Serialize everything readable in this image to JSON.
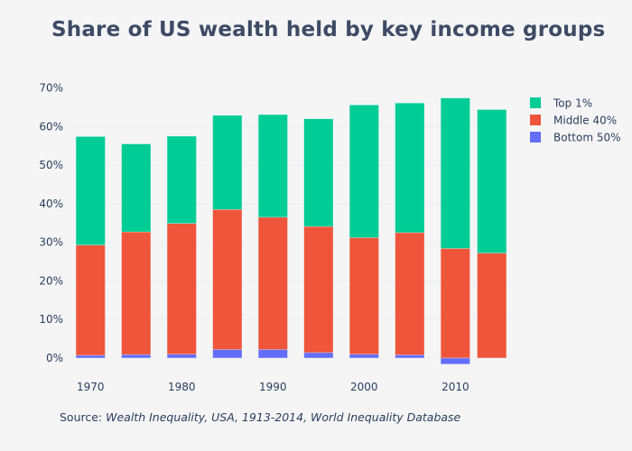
{
  "title": "Share of US wealth held by key income groups",
  "source": {
    "prefix": "Source: ",
    "text": "Wealth Inequality, USA, 1913-2014, World Inequality Database"
  },
  "chart_data": {
    "type": "bar",
    "barmode": "stacked",
    "title": "Share of US wealth held by key income groups",
    "x": [
      1970,
      1975,
      1980,
      1985,
      1990,
      1995,
      2000,
      2005,
      2010,
      2014
    ],
    "series": [
      {
        "name": "Bottom 50%",
        "color": "#636efa",
        "values": [
          0.7,
          0.9,
          1.0,
          2.2,
          2.2,
          1.4,
          1.0,
          0.8,
          -1.6,
          0.0
        ]
      },
      {
        "name": "Middle 40%",
        "color": "#ef553b",
        "values": [
          28.6,
          31.8,
          33.9,
          36.3,
          34.3,
          32.7,
          30.2,
          31.7,
          28.4,
          27.2
        ]
      },
      {
        "name": "Top 1%",
        "color": "#00cc96",
        "values": [
          28.1,
          22.8,
          22.6,
          24.4,
          26.6,
          27.9,
          34.4,
          33.6,
          39.0,
          37.2
        ]
      }
    ],
    "xticks": [
      "1970",
      "1980",
      "1990",
      "2000",
      "2010"
    ],
    "yticks": [
      "0%",
      "10%",
      "20%",
      "30%",
      "40%",
      "50%",
      "60%",
      "70%"
    ],
    "ylim": [
      -4,
      72
    ],
    "xlim": [
      1967.5,
      2016.5
    ],
    "grid": true,
    "legend": "top-right",
    "legend_order": [
      "Top 1%",
      "Middle 40%",
      "Bottom 50%"
    ]
  }
}
